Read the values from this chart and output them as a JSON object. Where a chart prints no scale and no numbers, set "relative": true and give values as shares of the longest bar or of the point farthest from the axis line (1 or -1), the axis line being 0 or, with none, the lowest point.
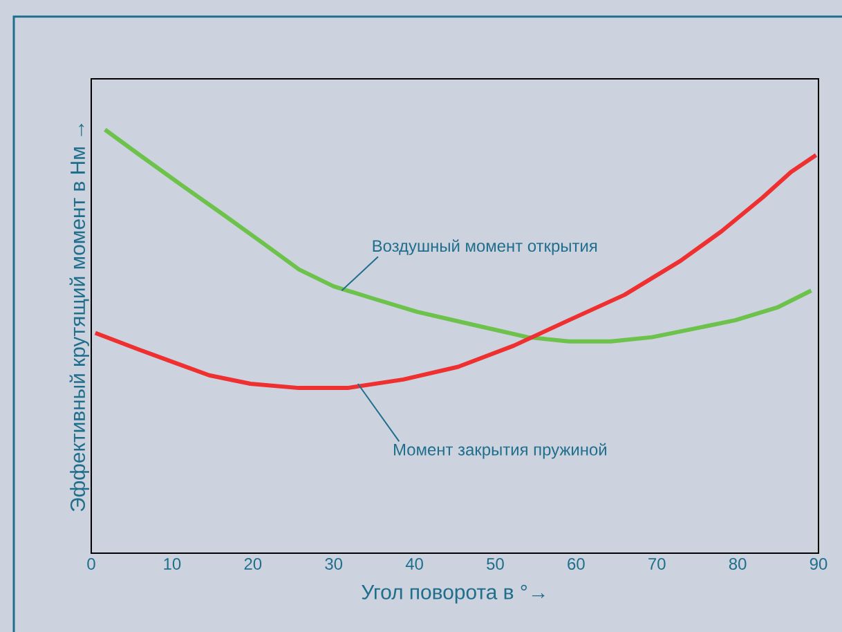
{
  "chart_data": {
    "type": "line",
    "relative": true,
    "xlabel": "Угол поворота в °→",
    "ylabel": "Эффективный крутящий момент в Нм →",
    "xlim": [
      0,
      90
    ],
    "xticks": [
      0,
      10,
      20,
      30,
      40,
      50,
      60,
      70,
      80,
      90
    ],
    "series": [
      {
        "color": "#6cc24a",
        "x": [
          1.7,
          6.0,
          11.1,
          16.3,
          21.4,
          25.7,
          30.0,
          35.1,
          40.3,
          47.1,
          54.0,
          59.1,
          64.3,
          69.4,
          74.6,
          79.7,
          84.9,
          89.1
        ],
        "values": [
          1.0,
          0.94,
          0.87,
          0.8,
          0.73,
          0.67,
          0.63,
          0.6,
          0.57,
          0.54,
          0.51,
          0.5,
          0.5,
          0.51,
          0.53,
          0.55,
          0.58,
          0.62
        ]
      },
      {
        "color": "#ee3030",
        "x": [
          0.5,
          6.0,
          14.6,
          19.7,
          25.7,
          31.7,
          38.6,
          45.4,
          52.3,
          59.1,
          66.0,
          72.9,
          78.0,
          83.1,
          86.6,
          89.7
        ],
        "values": [
          0.52,
          0.48,
          0.42,
          0.4,
          0.39,
          0.39,
          0.41,
          0.44,
          0.49,
          0.55,
          0.61,
          0.69,
          0.76,
          0.84,
          0.9,
          0.94
        ]
      }
    ],
    "annotations": [
      {
        "text": "Воздушный момент открытия",
        "x": 31,
        "y": 0.62
      },
      {
        "text": "Момент закрытия пружиной",
        "x": 33,
        "y": 0.4
      }
    ]
  }
}
